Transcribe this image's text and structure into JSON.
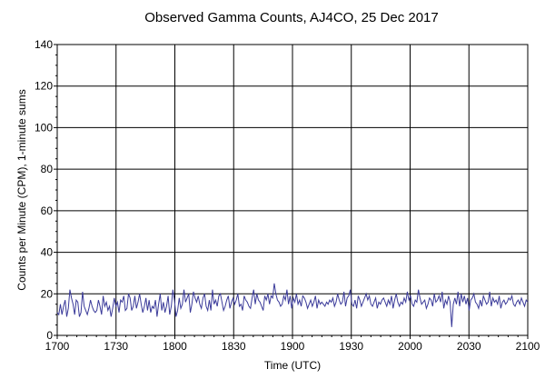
{
  "chart_data": {
    "type": "line",
    "title": "Observed Gamma Counts, AJ4CO, 25 Dec 2017",
    "xlabel": "Time (UTC)",
    "ylabel": "Counts per Minute (CPM), 1-minute sums",
    "x_tick_labels": [
      "1700",
      "1730",
      "1800",
      "1830",
      "1900",
      "1930",
      "2000",
      "2030",
      "2100"
    ],
    "y_tick_labels": [
      "0",
      "20",
      "40",
      "60",
      "80",
      "100",
      "120",
      "140"
    ],
    "x_range_minutes": [
      0,
      240
    ],
    "ylim": [
      0,
      140
    ],
    "grid": true,
    "line_color": "#3b3b9a",
    "series": [
      {
        "values": [
          11,
          10,
          15,
          10,
          14,
          17,
          9,
          13,
          22,
          18,
          15,
          10,
          17,
          16,
          9,
          11,
          21,
          14,
          12,
          10,
          13,
          17,
          14,
          12,
          11,
          12,
          17,
          14,
          10,
          19,
          14,
          16,
          12,
          14,
          9,
          13,
          18,
          14,
          16,
          11,
          17,
          16,
          19,
          12,
          13,
          20,
          18,
          12,
          14,
          19,
          13,
          16,
          20,
          15,
          11,
          14,
          18,
          12,
          17,
          11,
          14,
          13,
          17,
          9,
          15,
          20,
          12,
          16,
          11,
          14,
          19,
          10,
          14,
          22,
          17,
          9,
          12,
          18,
          13,
          15,
          22,
          16,
          18,
          20,
          11,
          15,
          21,
          18,
          16,
          19,
          15,
          13,
          18,
          20,
          14,
          12,
          17,
          12,
          22,
          15,
          17,
          14,
          19,
          20,
          16,
          12,
          14,
          17,
          19,
          13,
          16,
          18,
          15,
          17,
          20,
          14,
          15,
          12,
          19,
          17,
          16,
          14,
          13,
          18,
          22,
          15,
          20,
          17,
          16,
          14,
          12,
          19,
          17,
          20,
          15,
          19,
          18,
          25,
          20,
          17,
          16,
          14,
          15,
          19,
          17,
          22,
          15,
          19,
          13,
          18,
          16,
          20,
          15,
          17,
          14,
          19,
          18,
          16,
          13,
          15,
          17,
          14,
          16,
          19,
          13,
          17,
          15,
          16,
          15,
          14,
          16,
          15,
          17,
          16,
          18,
          14,
          16,
          20,
          17,
          15,
          16,
          21,
          14,
          18,
          19,
          22,
          15,
          14,
          17,
          13,
          19,
          17,
          14,
          16,
          18,
          20,
          17,
          19,
          15,
          14,
          16,
          18,
          13,
          16,
          15,
          17,
          18,
          16,
          14,
          17,
          15,
          19,
          13,
          17,
          20,
          16,
          14,
          16,
          15,
          18,
          16,
          21,
          17,
          19,
          15,
          14,
          17,
          16,
          22,
          18,
          15,
          16,
          17,
          13,
          15,
          18,
          17,
          14,
          20,
          16,
          17,
          19,
          16,
          21,
          13,
          17,
          15,
          19,
          16,
          4,
          15,
          18,
          15,
          21,
          14,
          20,
          16,
          19,
          15,
          18,
          12,
          17,
          18,
          20,
          16,
          15,
          13,
          17,
          14,
          19,
          17,
          15,
          16,
          21,
          14,
          18,
          16,
          17,
          15,
          19,
          13,
          16,
          17,
          15,
          16,
          18,
          17,
          19,
          15,
          14,
          16,
          17,
          15,
          18,
          16,
          14,
          17,
          16
        ]
      }
    ]
  }
}
